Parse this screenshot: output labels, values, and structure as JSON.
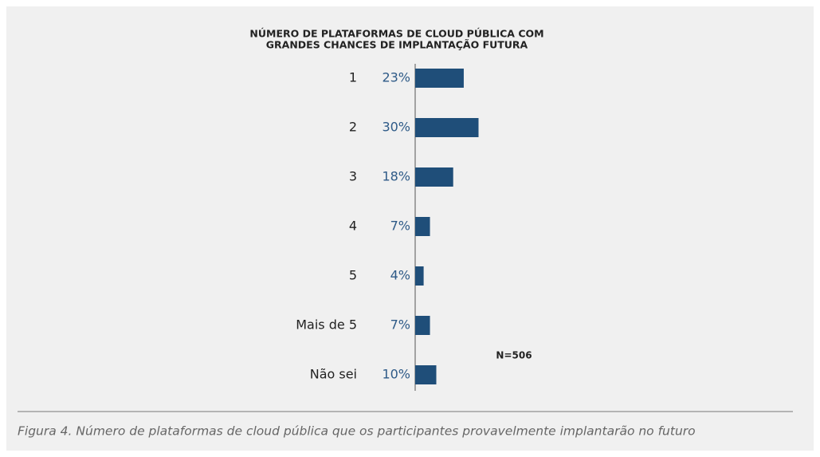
{
  "chart_data": {
    "type": "hbar",
    "title": [
      "NÚMERO DE PLATAFORMAS DE CLOUD PÚBLICA COM",
      "GRANDES CHANCES DE IMPLANTAÇÃO FUTURA"
    ],
    "categories": [
      "1",
      "2",
      "3",
      "4",
      "5",
      "Mais de 5",
      "Não sei"
    ],
    "values": [
      23,
      30,
      18,
      7,
      4,
      7,
      10
    ],
    "value_labels": [
      "23%",
      "30%",
      "18%",
      "7%",
      "4%",
      "7%",
      "10%"
    ],
    "color": "#1f4e79",
    "xlim": [
      0,
      100
    ],
    "annotation": "N=506",
    "caption": "Figura 4. Número de plataformas de cloud pública que os participantes provavelmente implantarão no futuro"
  }
}
